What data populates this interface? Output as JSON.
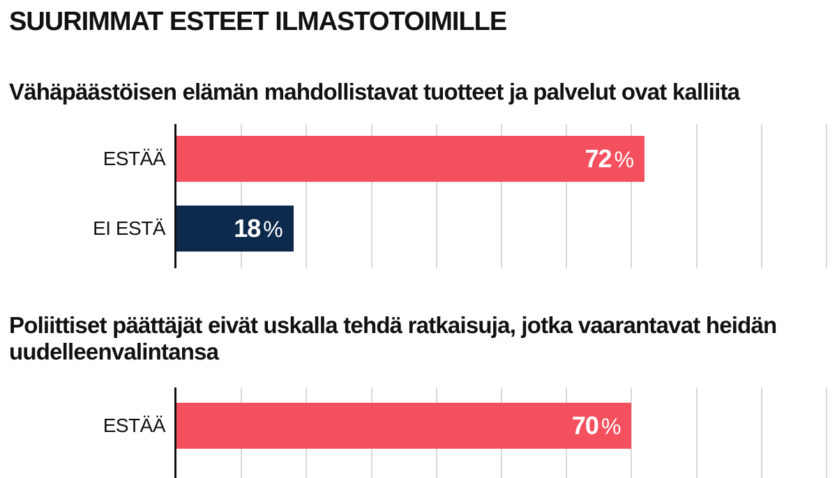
{
  "title": "SUURIMMAT ESTEET ILMASTOTOIMILLE",
  "colors": {
    "estaa": "#f5505e",
    "ei_esta": "#0d2a4d",
    "grid": "#d9d9d9",
    "axis": "#111111"
  },
  "chart_data": [
    {
      "type": "bar",
      "orientation": "horizontal",
      "title": "Vähäpäästöisen elämän mahdollistavat tuotteet ja palvelut ovat kalliita",
      "categories": [
        "ESTÄÄ",
        "EI ESTÄ"
      ],
      "values": [
        72,
        18
      ],
      "unit": "%",
      "xlim": [
        0,
        100
      ],
      "grid": true
    },
    {
      "type": "bar",
      "orientation": "horizontal",
      "title": "Poliittiset päättäjät eivät uskalla tehdä ratkaisuja, jotka vaarantavat heidän uudelleenvalintansa",
      "categories": [
        "ESTÄÄ"
      ],
      "values": [
        70
      ],
      "unit": "%",
      "xlim": [
        0,
        100
      ],
      "grid": true
    }
  ]
}
